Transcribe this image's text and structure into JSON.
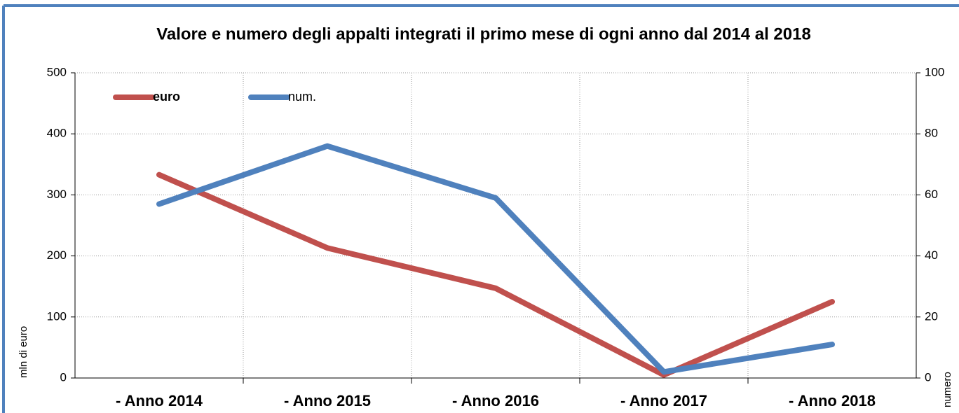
{
  "chart_data": {
    "type": "line",
    "title": "Valore e numero degli appalti integrati il primo mese di ogni anno dal 2014 al 2018",
    "y_label": "mln di euro",
    "y2_label": "numero",
    "categories": [
      "- Anno 2014",
      "- Anno 2015",
      "- Anno 2016",
      "- Anno 2017",
      "- Anno 2018"
    ],
    "series": [
      {
        "name": "euro",
        "color": "#c0504d",
        "values": [
          333,
          213,
          147,
          5,
          125
        ]
      },
      {
        "name": "num.",
        "color": "#4f81bd",
        "axis": "y2",
        "values": [
          57,
          76,
          59,
          2,
          11
        ]
      }
    ],
    "ylim": [
      0,
      500
    ],
    "yticks": [
      0,
      100,
      200,
      300,
      400,
      500
    ],
    "y2lim": [
      0,
      100
    ],
    "y2ticks": [
      0,
      20,
      40,
      60,
      80,
      100
    ],
    "grid": true,
    "legend": "top-left"
  }
}
